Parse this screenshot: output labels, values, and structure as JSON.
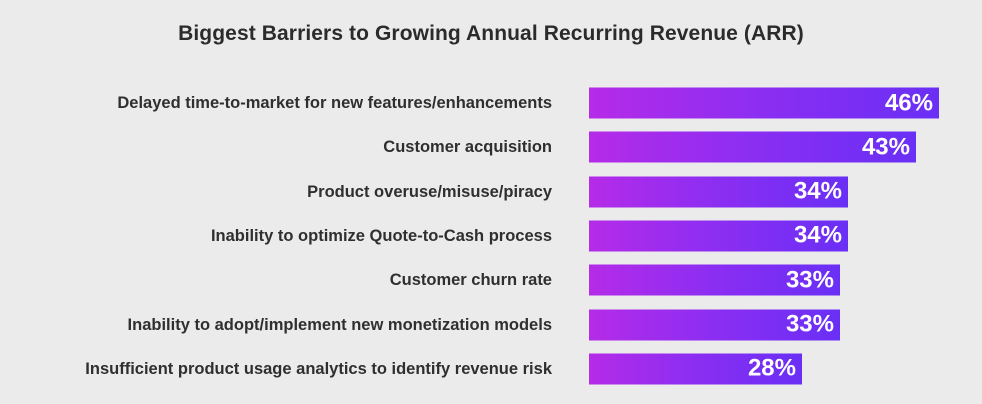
{
  "chart_data": {
    "type": "bar",
    "orientation": "horizontal",
    "title": "Biggest Barriers to Growing Annual Recurring Revenue (ARR)",
    "categories": [
      "Delayed time-to-market for new features/enhancements",
      "Customer acquisition",
      "Product overuse/misuse/piracy",
      "Inability to optimize Quote-to-Cash process",
      "Customer churn rate",
      "Inability to adopt/implement new monetization models",
      "Insufficient product usage analytics to identify revenue risk"
    ],
    "values": [
      46,
      43,
      34,
      34,
      33,
      33,
      28
    ],
    "value_labels": [
      "46%",
      "43%",
      "34%",
      "34%",
      "33%",
      "33%",
      "28%"
    ],
    "unit": "%",
    "colors": {
      "bar_gradient_start": "#b52be8",
      "bar_gradient_end": "#6a2ff5",
      "label_text": "#2f2f2f",
      "value_text": "#ffffff",
      "background": "#ebebeb"
    },
    "grid": false,
    "legend": "none"
  }
}
